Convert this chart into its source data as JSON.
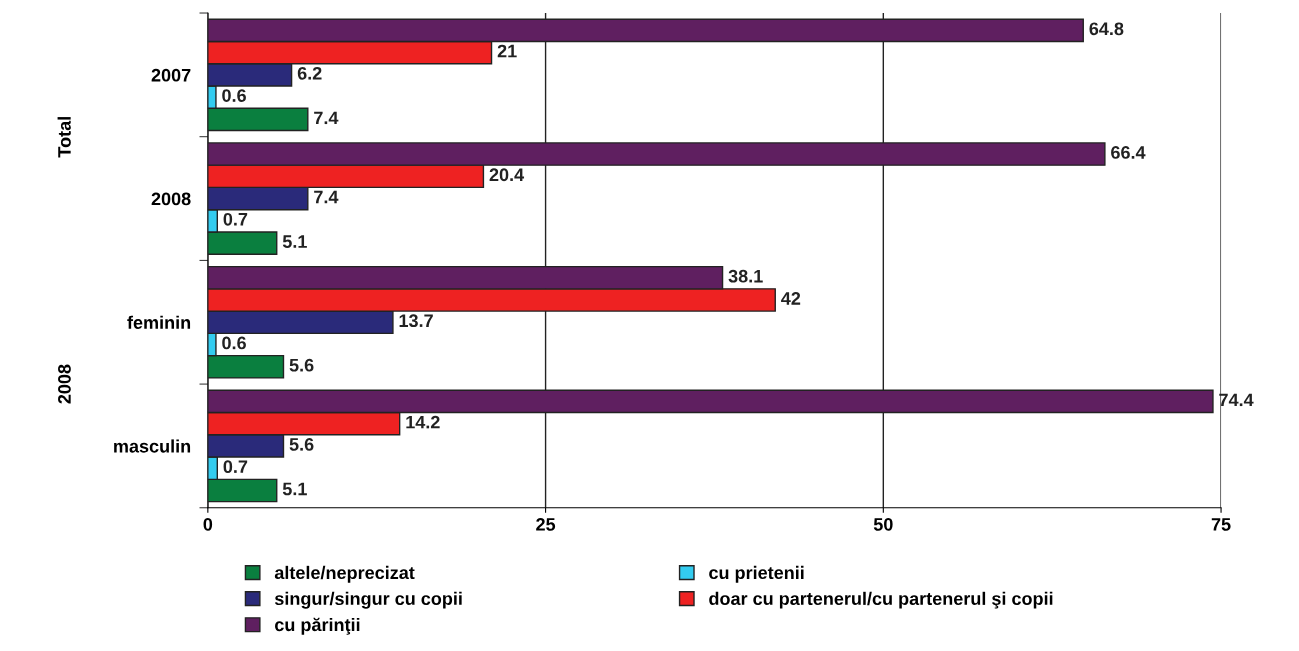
{
  "chart_data": {
    "type": "bar",
    "orientation": "horizontal",
    "categories": [
      "2007",
      "2008",
      "feminin",
      "masculin"
    ],
    "annotations": [
      "Total",
      "2008"
    ],
    "series": [
      {
        "name": "altele/neprecizat",
        "color": "#0a7f3f",
        "values": [
          7.4,
          5.1,
          5.6,
          5.1
        ]
      },
      {
        "name": "cu prietenii",
        "color": "#33ccf0",
        "values": [
          0.6,
          0.7,
          0.6,
          0.7
        ]
      },
      {
        "name": "singur/singur cu copii",
        "color": "#2a2a7a",
        "values": [
          6.2,
          7.4,
          13.7,
          5.6
        ]
      },
      {
        "name": "doar cu partenerul/cu partenerul şi copii",
        "color": "#ee2222",
        "values": [
          21,
          20.4,
          42,
          14.2
        ]
      },
      {
        "name": "cu părinţii",
        "color": "#5f1f60",
        "values": [
          64.8,
          66.4,
          38.1,
          74.4
        ]
      }
    ],
    "xlim": [
      0,
      75
    ],
    "xticks": [
      0,
      25,
      50,
      75
    ],
    "grid": "x",
    "data_labels": true,
    "legend": "bottom"
  }
}
